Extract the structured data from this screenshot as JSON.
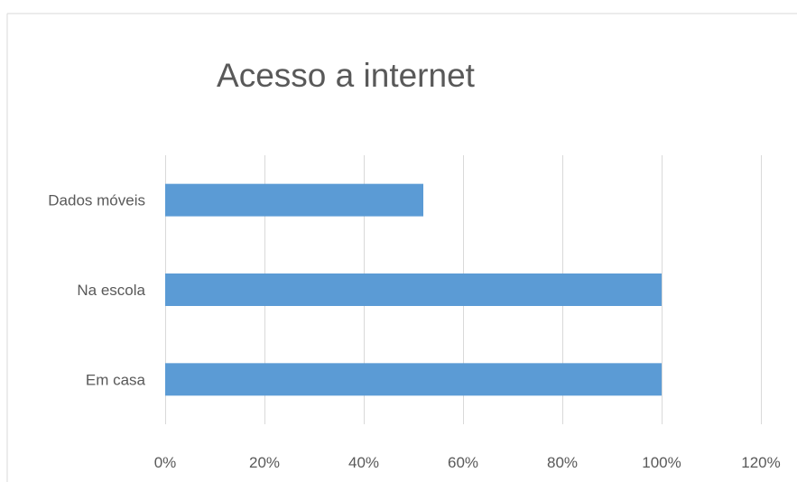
{
  "chart_data": {
    "type": "bar",
    "orientation": "horizontal",
    "title": "Acesso a internet",
    "categories": [
      "Em casa",
      "Na escola",
      "Dados móveis"
    ],
    "values": [
      1.0,
      1.0,
      0.52
    ],
    "xlim": [
      0,
      1.2
    ],
    "x_ticks": [
      0,
      0.2,
      0.4,
      0.6,
      0.8,
      1.0,
      1.2
    ],
    "x_tick_labels": [
      "0%",
      "20%",
      "40%",
      "60%",
      "80%",
      "100%",
      "120%"
    ],
    "xlabel": "",
    "ylabel": "",
    "grid": true,
    "legend": "none",
    "colors": {
      "bar": "#5B9BD5",
      "grid": "#D9D9D9",
      "text": "#595959",
      "frame": "#D9D9D9"
    }
  }
}
